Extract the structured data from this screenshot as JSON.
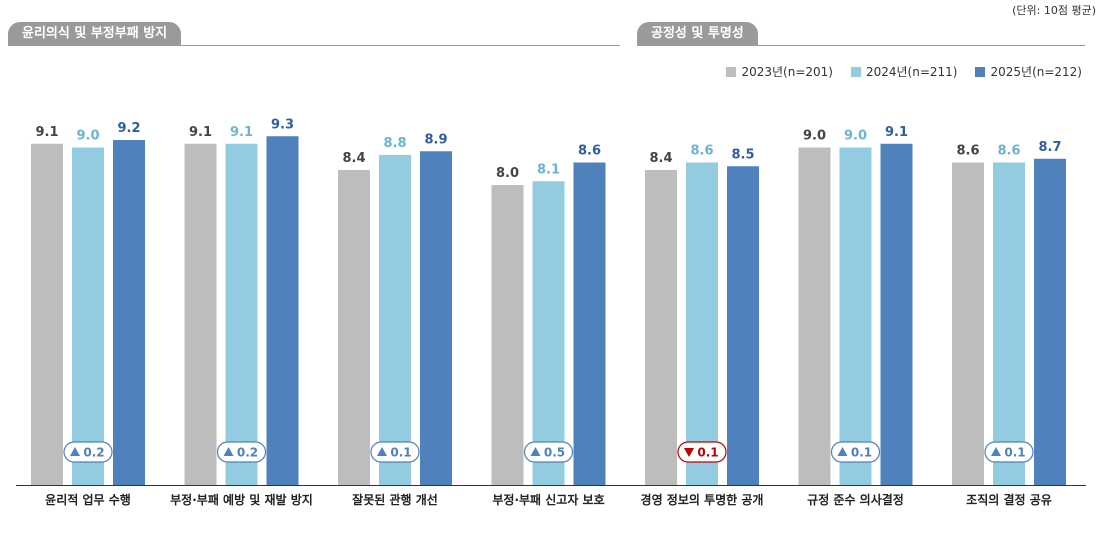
{
  "unit_label": "(단위: 10점 평균)",
  "sections": [
    {
      "label": "윤리의식 및 부정부패 방지"
    },
    {
      "label": "공정성 및 투명성"
    }
  ],
  "colors": {
    "2023": "#bdbdbd",
    "2024": "#93cce0",
    "2025": "#4f81bd",
    "up": "#4f81bd",
    "down": "#c00000",
    "section_tab": "#9a9a9a"
  },
  "chart_data": {
    "type": "bar",
    "categories": [
      "윤리적 업무 수행",
      "부정·부패 예방 및 재발 방지",
      "잘못된 관행 개선",
      "부정·부패 신고자 보호",
      "경영 정보의 투명한 공개",
      "규정 준수 의사결정",
      "조직의 결정 공유"
    ],
    "series": [
      {
        "name": "2023년(n=201)",
        "values": [
          9.1,
          9.1,
          8.4,
          8.0,
          8.4,
          9.0,
          8.6
        ]
      },
      {
        "name": "2024년(n=211)",
        "values": [
          9.0,
          9.1,
          8.8,
          8.1,
          8.6,
          9.0,
          8.6
        ]
      },
      {
        "name": "2025년(n=212)",
        "values": [
          9.2,
          9.3,
          8.9,
          8.6,
          8.5,
          9.1,
          8.7
        ]
      }
    ],
    "changes": [
      {
        "direction": "up",
        "value": "0.2"
      },
      {
        "direction": "up",
        "value": "0.2"
      },
      {
        "direction": "up",
        "value": "0.1"
      },
      {
        "direction": "up",
        "value": "0.5"
      },
      {
        "direction": "down",
        "value": "0.1"
      },
      {
        "direction": "up",
        "value": "0.1"
      },
      {
        "direction": "up",
        "value": "0.1"
      }
    ],
    "ylim": [
      0,
      10
    ],
    "legend_position": "top-right",
    "grid": false
  }
}
